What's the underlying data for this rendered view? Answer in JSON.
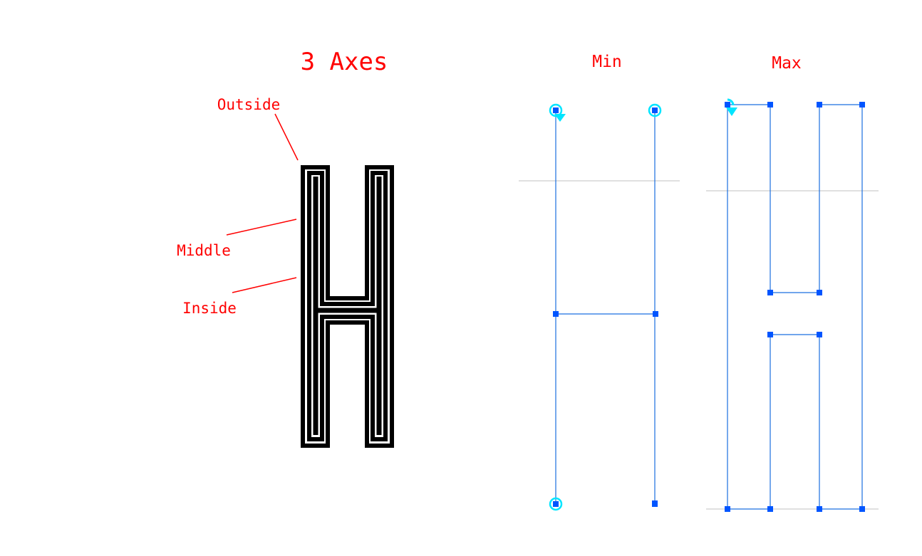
{
  "title": "3 Axes",
  "labels": {
    "outside": "Outside",
    "middle": "Middle",
    "inside": "Inside",
    "min": "Min",
    "max": "Max"
  },
  "colors": {
    "annotation": "#ff0000",
    "glyph": "#000000",
    "path": "#1a6fe0",
    "node": "#0055ff",
    "start_point": "#00e5ff",
    "guide": "#c0c0c0",
    "background": "#ffffff"
  },
  "icons": {
    "node": "square-node-icon",
    "start_point": "circle-start-point-icon",
    "direction": "direction-arrow-icon"
  }
}
